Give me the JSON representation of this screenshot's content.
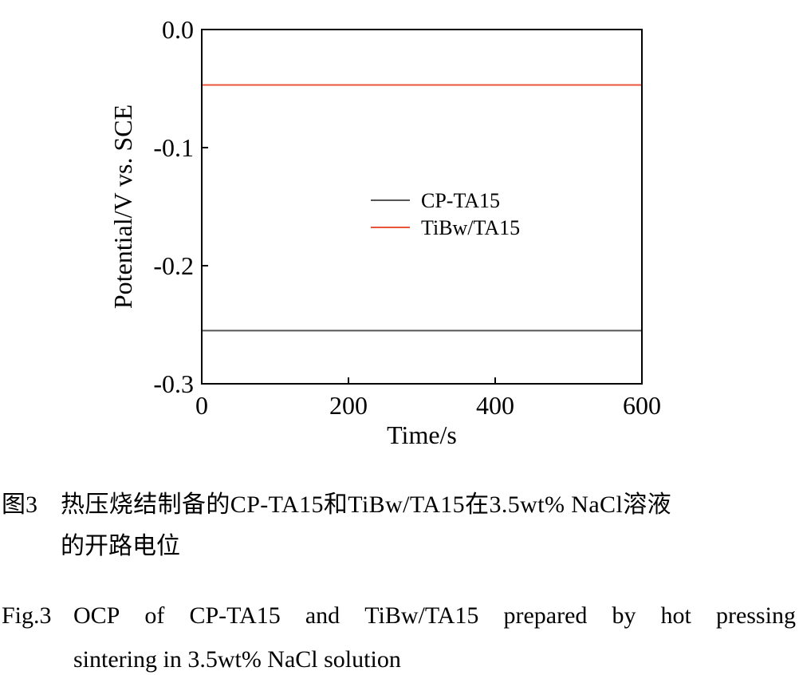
{
  "chart_data": {
    "type": "line",
    "xlabel": "Time/s",
    "ylabel": "Potential/V vs. SCE",
    "xlim": [
      0,
      600
    ],
    "ylim": [
      -0.3,
      0.0
    ],
    "xticks": [
      0,
      200,
      400,
      600
    ],
    "yticks": [
      0.0,
      -0.1,
      -0.2,
      -0.3
    ],
    "ytick_labels": [
      "0.0",
      "-0.1",
      "-0.2",
      "-0.3"
    ],
    "legend_position": "center",
    "series": [
      {
        "name": "CP-TA15",
        "color": "#555555",
        "x": [
          0,
          600
        ],
        "y": [
          -0.255,
          -0.255
        ]
      },
      {
        "name": "TiBw/TA15",
        "color": "#e8553a",
        "x": [
          0,
          600
        ],
        "y": [
          -0.047,
          -0.047
        ]
      }
    ]
  },
  "caption": {
    "cn_label": "图3",
    "cn_line1": "热压烧结制备的CP-TA15和TiBw/TA15在3.5wt% NaCl溶液",
    "cn_line2": "的开路电位",
    "en_label": "Fig.3",
    "en_line1": "OCP of CP-TA15 and TiBw/TA15 prepared by hot pressing",
    "en_line2": "sintering in 3.5wt% NaCl solution"
  }
}
